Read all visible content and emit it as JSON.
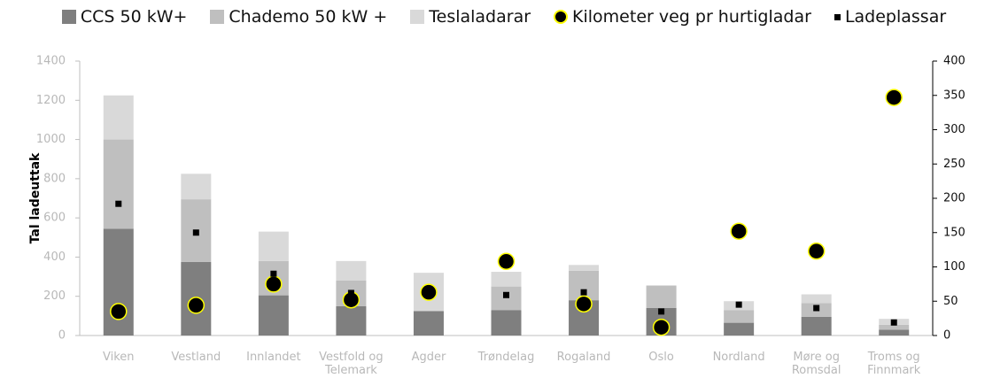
{
  "chart_data": {
    "type": "bar",
    "y_label": "Tal ladeuttak",
    "categories": [
      "Viken",
      "Vestland",
      "Innlandet",
      "Vestfold og Telemark",
      "Agder",
      "Trøndelag",
      "Rogaland",
      "Oslo",
      "Nordland",
      "Møre og Romsdal",
      "Troms og Finnmark"
    ],
    "series": [
      {
        "name": "CCS 50 kW+",
        "color": "#7f7f7f",
        "values": [
          545,
          375,
          205,
          150,
          125,
          130,
          180,
          140,
          65,
          95,
          30
        ]
      },
      {
        "name": "Chademo 50 kW +",
        "color": "#bfbfbf",
        "values": [
          455,
          320,
          175,
          130,
          0,
          120,
          150,
          115,
          65,
          70,
          25
        ]
      },
      {
        "name": "Teslaladarar",
        "color": "#d9d9d9",
        "values": [
          225,
          130,
          150,
          100,
          195,
          75,
          30,
          0,
          45,
          45,
          30
        ]
      },
      {
        "name": "Kilometer veg pr hurtigladar",
        "type": "scatter",
        "marker": "circle",
        "color": "#000000",
        "edge": "#ffff00",
        "axis": "y2",
        "values": [
          35,
          44,
          75,
          52,
          63,
          108,
          46,
          12,
          152,
          123,
          347
        ]
      },
      {
        "name": "Ladeplassar",
        "type": "scatter",
        "marker": "square",
        "color": "#000000",
        "axis": "y2",
        "values": [
          192,
          150,
          90,
          62,
          63,
          59,
          63,
          35,
          45,
          40,
          19
        ]
      }
    ],
    "stacked": true,
    "ylim": [
      0,
      1400
    ],
    "yticks": [
      0,
      200,
      400,
      600,
      800,
      1000,
      1200,
      1400
    ],
    "y2lim": [
      0,
      400
    ],
    "y2ticks": [
      0,
      50,
      100,
      150,
      200,
      250,
      300,
      350,
      400
    ],
    "grid": false
  }
}
